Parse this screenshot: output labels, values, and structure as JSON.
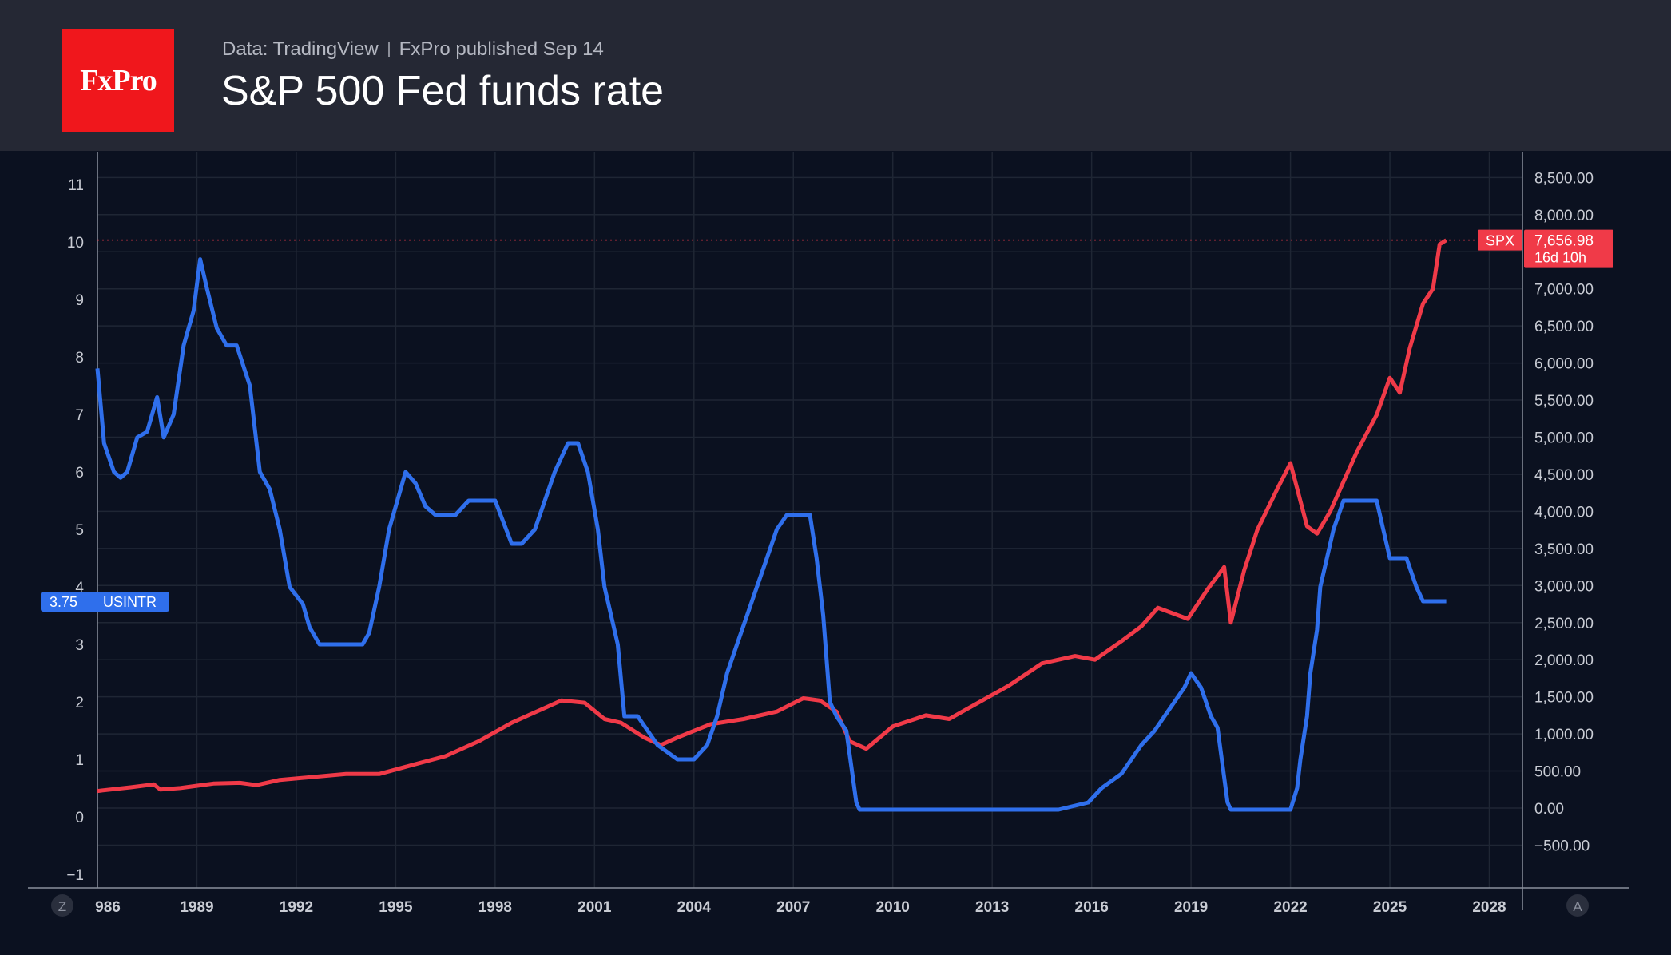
{
  "header": {
    "logo_text": "FxPro",
    "source": "Data: TradingView",
    "published": "FxPro published Sep 14",
    "title": "S&P 500 Fed funds rate"
  },
  "controls": {
    "left_button": "Z",
    "right_button": "A"
  },
  "colors": {
    "background": "#0b1120",
    "header_background": "#252834",
    "logo_red": "#f0171c",
    "rate_line": "#2f6fec",
    "spx_line": "#f03a48"
  },
  "chart_data": {
    "type": "line",
    "x_tick_labels": [
      "986",
      "1989",
      "1992",
      "1995",
      "1998",
      "2001",
      "2004",
      "2007",
      "2010",
      "2013",
      "2016",
      "2019",
      "2022",
      "2025",
      "2028"
    ],
    "xlim": [
      1986,
      2029
    ],
    "left_axis": {
      "ylim": [
        -1.3,
        11.3
      ],
      "tick_labels": [
        "11",
        "10",
        "9",
        "8",
        "7",
        "6",
        "5",
        "4",
        "3",
        "2",
        "1",
        "0",
        "−1"
      ],
      "tick_values": [
        11,
        10,
        9,
        8,
        7,
        6,
        5,
        4,
        3,
        2,
        1,
        0,
        -1
      ]
    },
    "right_axis": {
      "ylim": [
        -800,
        8700
      ],
      "tick_labels": [
        "8,500.00",
        "8,000.00",
        "7,500.00",
        "7,000.00",
        "6,500.00",
        "6,000.00",
        "5,500.00",
        "5,000.00",
        "4,500.00",
        "4,000.00",
        "3,500.00",
        "3,000.00",
        "2,500.00",
        "2,000.00",
        "1,500.00",
        "1,000.00",
        "500.00",
        "0.00",
        "−500.00"
      ],
      "tick_values": [
        8500,
        8000,
        7500,
        7000,
        6500,
        6000,
        5500,
        5000,
        4500,
        4000,
        3500,
        3000,
        2500,
        2000,
        1500,
        1000,
        500,
        0,
        -500
      ]
    },
    "grid": true,
    "series": [
      {
        "name": "USINTR",
        "axis": "left",
        "last_value_label": "3.75",
        "x": [
          1986.0,
          1986.2,
          1986.5,
          1986.7,
          1986.9,
          1987.2,
          1987.5,
          1987.8,
          1988.0,
          1988.3,
          1988.6,
          1988.9,
          1989.1,
          1989.3,
          1989.6,
          1989.9,
          1990.2,
          1990.6,
          1990.9,
          1991.2,
          1991.5,
          1991.8,
          1992.2,
          1992.4,
          1992.7,
          1993.0,
          1993.5,
          1994.0,
          1994.2,
          1994.5,
          1994.8,
          1995.0,
          1995.3,
          1995.6,
          1995.9,
          1996.2,
          1996.8,
          1997.2,
          1997.5,
          1998.0,
          1998.5,
          1998.8,
          1999.2,
          1999.5,
          1999.8,
          2000.2,
          2000.5,
          2000.8,
          2001.1,
          2001.3,
          2001.5,
          2001.7,
          2001.9,
          2002.3,
          2002.9,
          2003.5,
          2004.0,
          2004.4,
          2004.7,
          2005.0,
          2005.3,
          2005.6,
          2005.9,
          2006.2,
          2006.5,
          2006.8,
          2007.5,
          2007.7,
          2007.9,
          2008.1,
          2008.3,
          2008.6,
          2008.9,
          2009.0,
          2012.0,
          2015.0,
          2015.9,
          2016.3,
          2016.9,
          2017.2,
          2017.5,
          2017.9,
          2018.2,
          2018.5,
          2018.8,
          2019.0,
          2019.3,
          2019.6,
          2019.8,
          2020.1,
          2020.2,
          2021.0,
          2022.0,
          2022.2,
          2022.3,
          2022.5,
          2022.6,
          2022.8,
          2022.9,
          2023.1,
          2023.3,
          2023.6,
          2024.0,
          2024.6,
          2024.8,
          2025.0,
          2025.5,
          2025.8,
          2026.0,
          2026.7
        ],
        "values": [
          7.8,
          6.5,
          6.0,
          5.9,
          6.0,
          6.6,
          6.7,
          7.3,
          6.6,
          7.0,
          8.2,
          8.8,
          9.7,
          9.2,
          8.5,
          8.2,
          8.2,
          7.5,
          6.0,
          5.7,
          5.0,
          4.0,
          3.7,
          3.3,
          3.0,
          3.0,
          3.0,
          3.0,
          3.2,
          4.0,
          5.0,
          5.4,
          6.0,
          5.8,
          5.4,
          5.25,
          5.25,
          5.5,
          5.5,
          5.5,
          4.75,
          4.75,
          5.0,
          5.5,
          6.0,
          6.5,
          6.5,
          6.0,
          5.0,
          4.0,
          3.5,
          3.0,
          1.75,
          1.75,
          1.25,
          1.0,
          1.0,
          1.25,
          1.75,
          2.5,
          3.0,
          3.5,
          4.0,
          4.5,
          5.0,
          5.25,
          5.25,
          4.5,
          3.5,
          2.0,
          1.75,
          1.5,
          0.25,
          0.125,
          0.125,
          0.125,
          0.25,
          0.5,
          0.75,
          1.0,
          1.25,
          1.5,
          1.75,
          2.0,
          2.25,
          2.5,
          2.25,
          1.75,
          1.55,
          0.25,
          0.125,
          0.125,
          0.125,
          0.5,
          1.0,
          1.75,
          2.5,
          3.25,
          4.0,
          4.5,
          5.0,
          5.5,
          5.5,
          5.5,
          5.0,
          4.5,
          4.5,
          4.0,
          3.75,
          3.75
        ]
      },
      {
        "name": "SPX",
        "axis": "right",
        "last_value_label": "7,656.98",
        "countdown_label": "16d 10h",
        "x": [
          1986.0,
          1987.0,
          1987.7,
          1987.9,
          1988.5,
          1989.5,
          1990.3,
          1990.8,
          1991.5,
          1992.5,
          1993.5,
          1994.5,
          1995.5,
          1996.5,
          1997.5,
          1998.5,
          1999.0,
          1999.5,
          2000.0,
          2000.7,
          2001.3,
          2001.8,
          2002.5,
          2003.0,
          2003.5,
          2004.5,
          2005.5,
          2006.5,
          2007.3,
          2007.8,
          2008.3,
          2008.7,
          2009.2,
          2010.0,
          2011.0,
          2011.7,
          2012.5,
          2013.5,
          2014.5,
          2015.5,
          2016.1,
          2016.9,
          2017.5,
          2018.0,
          2018.9,
          2019.5,
          2020.0,
          2020.2,
          2020.6,
          2021.0,
          2021.6,
          2022.0,
          2022.5,
          2022.8,
          2023.2,
          2023.6,
          2024.0,
          2024.6,
          2025.0,
          2025.3,
          2025.6,
          2026.0,
          2026.3,
          2026.5,
          2026.7
        ],
        "values": [
          230,
          280,
          320,
          250,
          270,
          330,
          340,
          310,
          380,
          420,
          460,
          460,
          580,
          700,
          900,
          1150,
          1250,
          1350,
          1450,
          1420,
          1200,
          1150,
          950,
          850,
          950,
          1130,
          1200,
          1300,
          1480,
          1450,
          1300,
          900,
          800,
          1100,
          1250,
          1200,
          1400,
          1650,
          1950,
          2050,
          2000,
          2250,
          2450,
          2700,
          2550,
          2950,
          3250,
          2500,
          3200,
          3750,
          4300,
          4650,
          3800,
          3700,
          4000,
          4400,
          4800,
          5300,
          5800,
          5600,
          6200,
          6800,
          7000,
          7600,
          7657
        ]
      }
    ]
  }
}
